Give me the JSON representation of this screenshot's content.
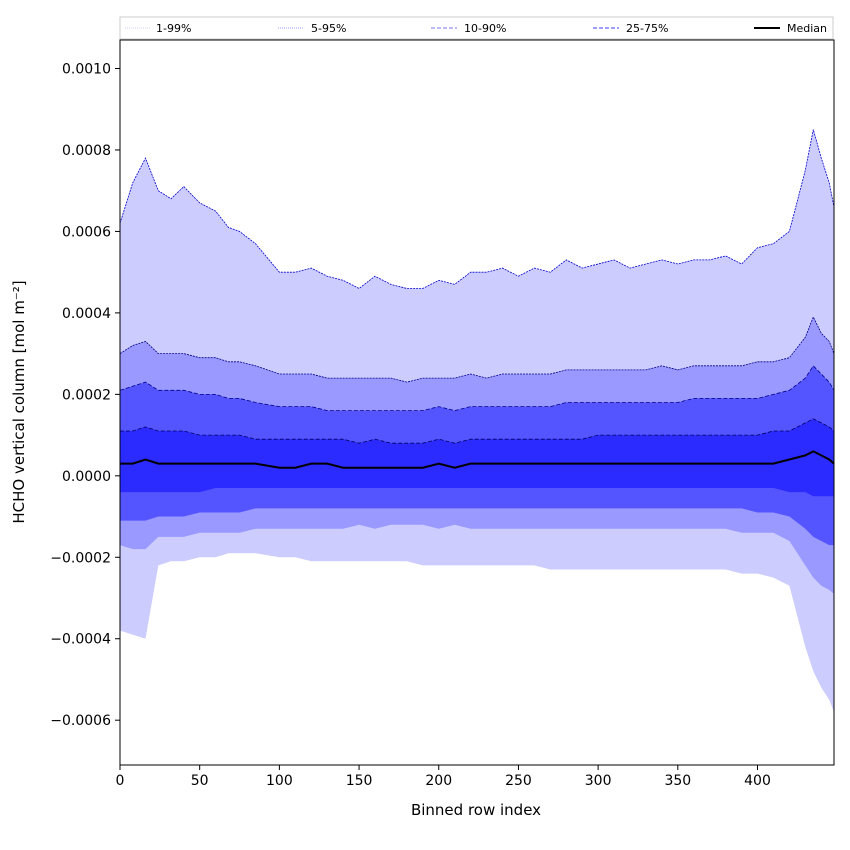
{
  "chart_data": {
    "type": "area",
    "xlabel": "Binned row index",
    "ylabel": "HCHO vertical column [mol m⁻²]",
    "xlim": [
      0,
      448
    ],
    "ylim": [
      -0.00071,
      0.00107
    ],
    "x_ticks": [
      0,
      50,
      100,
      150,
      200,
      250,
      300,
      350,
      400
    ],
    "x_tick_labels": [
      "0",
      "50",
      "100",
      "150",
      "200",
      "250",
      "300",
      "350",
      "400"
    ],
    "y_ticks": [
      -0.0006,
      -0.0004,
      -0.0002,
      0.0,
      0.0002,
      0.0004,
      0.0006,
      0.0008,
      0.001
    ],
    "y_tick_labels": [
      "−0.0006",
      "−0.0004",
      "−0.0002",
      "0.0000",
      "0.0002",
      "0.0004",
      "0.0006",
      "0.0008",
      "0.0010"
    ],
    "grid": false,
    "legend_position": "top, above plot, 5 columns",
    "legend": [
      {
        "label": "1-99%",
        "color": "#d0d0f0",
        "style": "dotted"
      },
      {
        "label": "5-95%",
        "color": "#9c9cf0",
        "style": "dotted"
      },
      {
        "label": "10-90%",
        "color": "#7878f0",
        "style": "dashed"
      },
      {
        "label": "25-75%",
        "color": "#3c3cf0",
        "style": "dashed"
      },
      {
        "label": "Median",
        "color": "#000000",
        "style": "solid"
      }
    ],
    "bands": [
      {
        "name": "1-99%",
        "fill": "#ccccff",
        "line": "#0000cc"
      },
      {
        "name": "5-95%",
        "fill": "#9999ff",
        "line": "#00008b"
      },
      {
        "name": "10-90%",
        "fill": "#5555ff",
        "line": "#00008b"
      },
      {
        "name": "25-75%",
        "fill": "#2b2bff",
        "line": "#000066"
      }
    ],
    "x": [
      0,
      8,
      16,
      24,
      32,
      40,
      50,
      60,
      68,
      75,
      85,
      100,
      110,
      120,
      130,
      140,
      150,
      160,
      170,
      180,
      190,
      200,
      210,
      220,
      230,
      240,
      250,
      260,
      270,
      280,
      290,
      300,
      310,
      320,
      330,
      340,
      350,
      360,
      370,
      380,
      390,
      400,
      410,
      420,
      430,
      435,
      440,
      445,
      448
    ],
    "series": [
      {
        "name": "99%",
        "values": [
          0.00062,
          0.00072,
          0.00078,
          0.0007,
          0.00068,
          0.00071,
          0.00067,
          0.00065,
          0.00061,
          0.0006,
          0.00057,
          0.0005,
          0.0005,
          0.00051,
          0.00049,
          0.00048,
          0.00046,
          0.00049,
          0.00047,
          0.00046,
          0.00046,
          0.00048,
          0.00047,
          0.0005,
          0.0005,
          0.00051,
          0.00049,
          0.00051,
          0.0005,
          0.00053,
          0.00051,
          0.00052,
          0.00053,
          0.00051,
          0.00052,
          0.00053,
          0.00052,
          0.00053,
          0.00053,
          0.00054,
          0.00052,
          0.00056,
          0.00057,
          0.0006,
          0.00075,
          0.00085,
          0.00078,
          0.00072,
          0.00066
        ]
      },
      {
        "name": "95%",
        "values": [
          0.0003,
          0.00032,
          0.00033,
          0.0003,
          0.0003,
          0.0003,
          0.00029,
          0.00029,
          0.00028,
          0.00028,
          0.00027,
          0.00025,
          0.00025,
          0.00025,
          0.00024,
          0.00024,
          0.00024,
          0.00024,
          0.00024,
          0.00023,
          0.00024,
          0.00024,
          0.00024,
          0.00025,
          0.00024,
          0.00025,
          0.00025,
          0.00025,
          0.00025,
          0.00026,
          0.00026,
          0.00026,
          0.00026,
          0.00026,
          0.00026,
          0.00027,
          0.00026,
          0.00027,
          0.00027,
          0.00027,
          0.00027,
          0.00028,
          0.00028,
          0.00029,
          0.00034,
          0.00039,
          0.00035,
          0.00033,
          0.0003
        ]
      },
      {
        "name": "90%",
        "values": [
          0.00021,
          0.00022,
          0.00023,
          0.00021,
          0.00021,
          0.00021,
          0.0002,
          0.0002,
          0.00019,
          0.00019,
          0.00018,
          0.00017,
          0.00017,
          0.00017,
          0.00016,
          0.00016,
          0.00016,
          0.00016,
          0.00016,
          0.00016,
          0.00016,
          0.00017,
          0.00016,
          0.00017,
          0.00017,
          0.00017,
          0.00017,
          0.00017,
          0.00017,
          0.00018,
          0.00018,
          0.00018,
          0.00018,
          0.00018,
          0.00018,
          0.00018,
          0.00018,
          0.00019,
          0.00019,
          0.00019,
          0.00019,
          0.00019,
          0.0002,
          0.00021,
          0.00024,
          0.00027,
          0.00025,
          0.00023,
          0.00021
        ]
      },
      {
        "name": "75%",
        "values": [
          0.00011,
          0.00011,
          0.00012,
          0.00011,
          0.00011,
          0.00011,
          0.0001,
          0.0001,
          0.0001,
          0.0001,
          9e-05,
          9e-05,
          9e-05,
          9e-05,
          9e-05,
          9e-05,
          8e-05,
          9e-05,
          8e-05,
          8e-05,
          8e-05,
          9e-05,
          8e-05,
          9e-05,
          9e-05,
          9e-05,
          9e-05,
          9e-05,
          9e-05,
          9e-05,
          9e-05,
          0.0001,
          0.0001,
          0.0001,
          0.0001,
          0.0001,
          0.0001,
          0.0001,
          0.0001,
          0.0001,
          0.0001,
          0.0001,
          0.00011,
          0.00011,
          0.00013,
          0.00014,
          0.00013,
          0.00012,
          0.00011
        ]
      },
      {
        "name": "Median",
        "values": [
          3e-05,
          3e-05,
          4e-05,
          3e-05,
          3e-05,
          3e-05,
          3e-05,
          3e-05,
          3e-05,
          3e-05,
          3e-05,
          2e-05,
          2e-05,
          3e-05,
          3e-05,
          2e-05,
          2e-05,
          2e-05,
          2e-05,
          2e-05,
          2e-05,
          3e-05,
          2e-05,
          3e-05,
          3e-05,
          3e-05,
          3e-05,
          3e-05,
          3e-05,
          3e-05,
          3e-05,
          3e-05,
          3e-05,
          3e-05,
          3e-05,
          3e-05,
          3e-05,
          3e-05,
          3e-05,
          3e-05,
          3e-05,
          3e-05,
          3e-05,
          4e-05,
          5e-05,
          6e-05,
          5e-05,
          4e-05,
          3e-05
        ]
      },
      {
        "name": "25%",
        "values": [
          -4e-05,
          -4e-05,
          -4e-05,
          -4e-05,
          -4e-05,
          -4e-05,
          -4e-05,
          -3e-05,
          -3e-05,
          -3e-05,
          -3e-05,
          -3e-05,
          -3e-05,
          -3e-05,
          -3e-05,
          -3e-05,
          -3e-05,
          -3e-05,
          -3e-05,
          -3e-05,
          -3e-05,
          -3e-05,
          -3e-05,
          -3e-05,
          -3e-05,
          -3e-05,
          -3e-05,
          -3e-05,
          -3e-05,
          -3e-05,
          -3e-05,
          -3e-05,
          -3e-05,
          -3e-05,
          -3e-05,
          -3e-05,
          -3e-05,
          -3e-05,
          -3e-05,
          -3e-05,
          -3e-05,
          -3e-05,
          -3e-05,
          -4e-05,
          -4e-05,
          -5e-05,
          -5e-05,
          -5e-05,
          -5e-05
        ]
      },
      {
        "name": "10%",
        "values": [
          -0.00011,
          -0.00011,
          -0.00011,
          -0.0001,
          -0.0001,
          -0.0001,
          -9e-05,
          -9e-05,
          -9e-05,
          -9e-05,
          -8e-05,
          -8e-05,
          -8e-05,
          -8e-05,
          -8e-05,
          -8e-05,
          -8e-05,
          -8e-05,
          -8e-05,
          -8e-05,
          -8e-05,
          -8e-05,
          -8e-05,
          -8e-05,
          -8e-05,
          -8e-05,
          -8e-05,
          -8e-05,
          -8e-05,
          -8e-05,
          -8e-05,
          -8e-05,
          -8e-05,
          -8e-05,
          -8e-05,
          -8e-05,
          -8e-05,
          -8e-05,
          -8e-05,
          -8e-05,
          -8e-05,
          -9e-05,
          -9e-05,
          -0.0001,
          -0.00013,
          -0.00015,
          -0.00016,
          -0.00017,
          -0.00017
        ]
      },
      {
        "name": "5%",
        "values": [
          -0.00017,
          -0.00018,
          -0.00018,
          -0.00015,
          -0.00015,
          -0.00015,
          -0.00014,
          -0.00014,
          -0.00014,
          -0.00014,
          -0.00013,
          -0.00013,
          -0.00013,
          -0.00013,
          -0.00013,
          -0.00013,
          -0.00012,
          -0.00013,
          -0.00012,
          -0.00012,
          -0.00012,
          -0.00013,
          -0.00012,
          -0.00013,
          -0.00013,
          -0.00013,
          -0.00013,
          -0.00013,
          -0.00013,
          -0.00013,
          -0.00013,
          -0.00013,
          -0.00013,
          -0.00013,
          -0.00013,
          -0.00013,
          -0.00013,
          -0.00013,
          -0.00013,
          -0.00013,
          -0.00014,
          -0.00014,
          -0.00014,
          -0.00016,
          -0.00022,
          -0.00025,
          -0.00027,
          -0.00028,
          -0.00029
        ]
      },
      {
        "name": "1%",
        "values": [
          -0.00038,
          -0.00039,
          -0.0004,
          -0.00022,
          -0.00021,
          -0.00021,
          -0.0002,
          -0.0002,
          -0.00019,
          -0.00019,
          -0.00019,
          -0.0002,
          -0.0002,
          -0.00021,
          -0.00021,
          -0.00021,
          -0.00021,
          -0.00021,
          -0.00021,
          -0.00021,
          -0.00022,
          -0.00022,
          -0.00022,
          -0.00022,
          -0.00022,
          -0.00022,
          -0.00022,
          -0.00022,
          -0.00023,
          -0.00023,
          -0.00023,
          -0.00023,
          -0.00023,
          -0.00023,
          -0.00023,
          -0.00023,
          -0.00023,
          -0.00023,
          -0.00023,
          -0.00023,
          -0.00024,
          -0.00024,
          -0.00025,
          -0.00027,
          -0.00042,
          -0.00048,
          -0.00052,
          -0.00055,
          -0.00058
        ]
      }
    ]
  }
}
